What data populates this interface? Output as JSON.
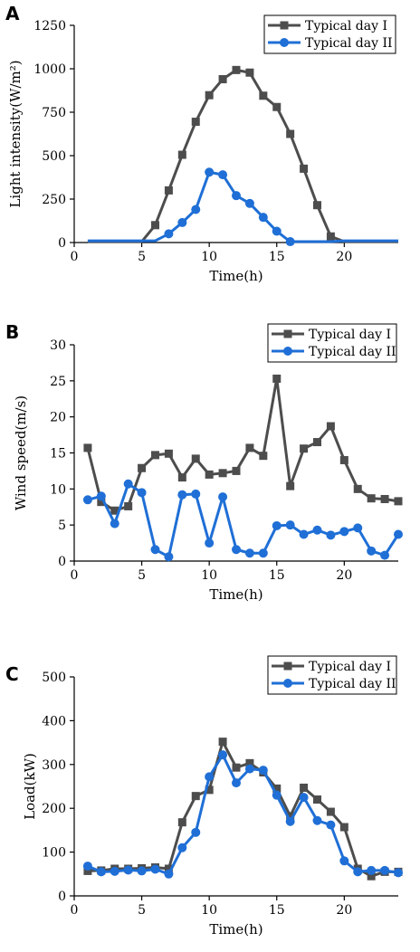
{
  "colors": {
    "series1": "#4d4d4d",
    "series2": "#1f6fd6",
    "axis": "#000000"
  },
  "chart_data": [
    {
      "panel": "A",
      "type": "line",
      "xlabel": "Time(h)",
      "ylabel": "Light intensity(W/m²)",
      "xlim": [
        0,
        24
      ],
      "ylim": [
        0,
        1250
      ],
      "xticks": [
        0,
        5,
        10,
        15,
        20
      ],
      "yticks": [
        0,
        250,
        500,
        750,
        1000,
        1250
      ],
      "grid": false,
      "legend_position": "top-right",
      "series": [
        {
          "name": "Typical day I",
          "marker": "square",
          "color": "#4d4d4d",
          "x": [
            1,
            2,
            3,
            4,
            5,
            6,
            7,
            8,
            9,
            10,
            11,
            12,
            13,
            14,
            15,
            16,
            17,
            18,
            19,
            20,
            21,
            22,
            23,
            24
          ],
          "y": [
            5,
            5,
            5,
            5,
            5,
            100,
            300,
            505,
            695,
            848,
            940,
            993,
            978,
            845,
            780,
            625,
            425,
            215,
            35,
            5,
            5,
            5,
            5,
            5
          ]
        },
        {
          "name": "Typical day II",
          "marker": "circle",
          "color": "#1f6fd6",
          "x": [
            1,
            2,
            3,
            4,
            5,
            6,
            7,
            8,
            9,
            10,
            11,
            12,
            13,
            14,
            15,
            16,
            17,
            18,
            19,
            20,
            21,
            22,
            23,
            24
          ],
          "y": [
            10,
            10,
            10,
            10,
            10,
            10,
            50,
            115,
            190,
            405,
            390,
            270,
            225,
            145,
            65,
            5,
            5,
            5,
            5,
            10,
            10,
            10,
            10,
            10
          ]
        }
      ]
    },
    {
      "panel": "B",
      "type": "line",
      "xlabel": "Time(h)",
      "ylabel": "Wind speed(m/s)",
      "xlim": [
        0,
        24
      ],
      "ylim": [
        0,
        30
      ],
      "xticks": [
        0,
        5,
        10,
        15,
        20
      ],
      "yticks": [
        0,
        5,
        10,
        15,
        20,
        25,
        30
      ],
      "grid": false,
      "legend_position": "top-right",
      "series": [
        {
          "name": "Typical day I",
          "marker": "square",
          "color": "#4d4d4d",
          "x": [
            1,
            2,
            3,
            4,
            5,
            6,
            7,
            8,
            9,
            10,
            11,
            12,
            13,
            14,
            15,
            16,
            17,
            18,
            19,
            20,
            21,
            22,
            23,
            24
          ],
          "y": [
            15.7,
            8.2,
            7.0,
            7.6,
            12.9,
            14.7,
            14.9,
            11.6,
            14.2,
            12.0,
            12.2,
            12.5,
            15.7,
            14.6,
            25.3,
            10.4,
            15.6,
            16.5,
            18.7,
            14.0,
            10.0,
            8.7,
            8.6,
            8.3
          ]
        },
        {
          "name": "Typical day II",
          "marker": "circle",
          "color": "#1f6fd6",
          "x": [
            1,
            2,
            3,
            4,
            5,
            6,
            7,
            8,
            9,
            10,
            11,
            12,
            13,
            14,
            15,
            16,
            17,
            18,
            19,
            20,
            21,
            22,
            23,
            24
          ],
          "y": [
            8.5,
            9.0,
            5.2,
            10.7,
            9.5,
            1.6,
            0.6,
            9.2,
            9.3,
            2.5,
            8.9,
            1.6,
            1.1,
            1.1,
            4.9,
            5.0,
            3.7,
            4.3,
            3.6,
            4.1,
            4.6,
            1.4,
            0.8,
            3.7
          ]
        }
      ]
    },
    {
      "panel": "C",
      "type": "line",
      "xlabel": "Time(h)",
      "ylabel": "Load(kW)",
      "xlim": [
        0,
        24
      ],
      "ylim": [
        0,
        500
      ],
      "xticks": [
        0,
        5,
        10,
        15,
        20
      ],
      "yticks": [
        0,
        100,
        200,
        300,
        400,
        500
      ],
      "grid": false,
      "legend_position": "top-right",
      "series": [
        {
          "name": "Typical day I",
          "marker": "square",
          "color": "#4d4d4d",
          "x": [
            1,
            2,
            3,
            4,
            5,
            6,
            7,
            8,
            9,
            10,
            11,
            12,
            13,
            14,
            15,
            16,
            17,
            18,
            19,
            20,
            21,
            22,
            23,
            24
          ],
          "y": [
            57,
            58,
            62,
            62,
            63,
            65,
            62,
            168,
            228,
            242,
            352,
            293,
            303,
            282,
            245,
            182,
            247,
            220,
            192,
            157,
            62,
            45,
            55,
            55
          ]
        },
        {
          "name": "Typical day II",
          "marker": "circle",
          "color": "#1f6fd6",
          "x": [
            1,
            2,
            3,
            4,
            5,
            6,
            7,
            8,
            9,
            10,
            11,
            12,
            13,
            14,
            15,
            16,
            17,
            18,
            19,
            20,
            21,
            22,
            23,
            24
          ],
          "y": [
            68,
            55,
            56,
            59,
            57,
            61,
            50,
            110,
            145,
            272,
            322,
            258,
            290,
            287,
            230,
            170,
            225,
            172,
            162,
            80,
            55,
            58,
            58,
            53
          ]
        }
      ]
    }
  ]
}
